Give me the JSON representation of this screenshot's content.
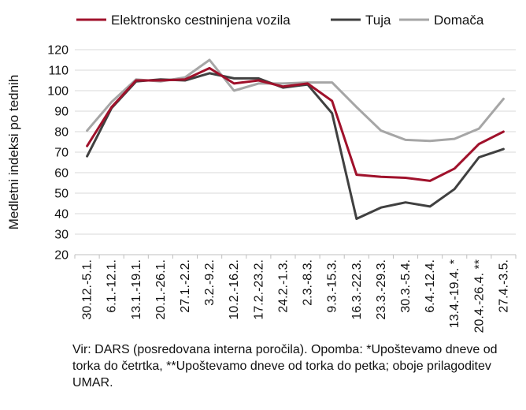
{
  "chart_data": {
    "type": "line",
    "ylabel": "Medletni indeksi po tednih",
    "ylim": [
      20,
      120
    ],
    "yticks": [
      20,
      30,
      40,
      50,
      60,
      70,
      80,
      90,
      100,
      110,
      120
    ],
    "grid": "horizontal",
    "legend_position": "top",
    "categories": [
      "30.12.-5.1.",
      "6.1.-12.1.",
      "13.1.-19.1.",
      "20.1.-26.1.",
      "27.1.-2.2.",
      "3.2.-9.2.",
      "10.2.-16.2.",
      "17.2.-23.2.",
      "24.2.-1.3.",
      "2.3.-8.3.",
      "9.3.-15.3.",
      "16.3.-22.3.",
      "23.3.-29.3.",
      "30.3.-5.4.",
      "6.4.-12.4.",
      "13.4.-19.4. *",
      "20.4.-26.4. **",
      "27.4.-3.5."
    ],
    "series": [
      {
        "name": "Elektronsko cestninjena vozila",
        "color": "#a0112b",
        "values": [
          73,
          92,
          105,
          105,
          105.5,
          111,
          103.5,
          105,
          102,
          103.5,
          95,
          59,
          58,
          57.5,
          56,
          62,
          74,
          80
        ]
      },
      {
        "name": "Tuja",
        "color": "#404040",
        "values": [
          68,
          91.5,
          104.5,
          105.5,
          105,
          108.5,
          106,
          106,
          101.5,
          103,
          89,
          37.5,
          43,
          45.5,
          43.5,
          52,
          67.5,
          71.5
        ]
      },
      {
        "name": "Domača",
        "color": "#a6a6a6",
        "values": [
          80.5,
          94.5,
          105.5,
          104.5,
          106.5,
          115,
          100,
          103.5,
          103.5,
          104,
          104,
          92,
          80.5,
          76,
          75.5,
          76.5,
          81.5,
          96
        ]
      }
    ]
  },
  "source_note": "Vir: DARS (posredovana interna poročila). Opomba: *Upoštevamo dneve od torka do četrtka, **Upoštevamo dneve od torka do petka; oboje prilagoditev UMAR."
}
